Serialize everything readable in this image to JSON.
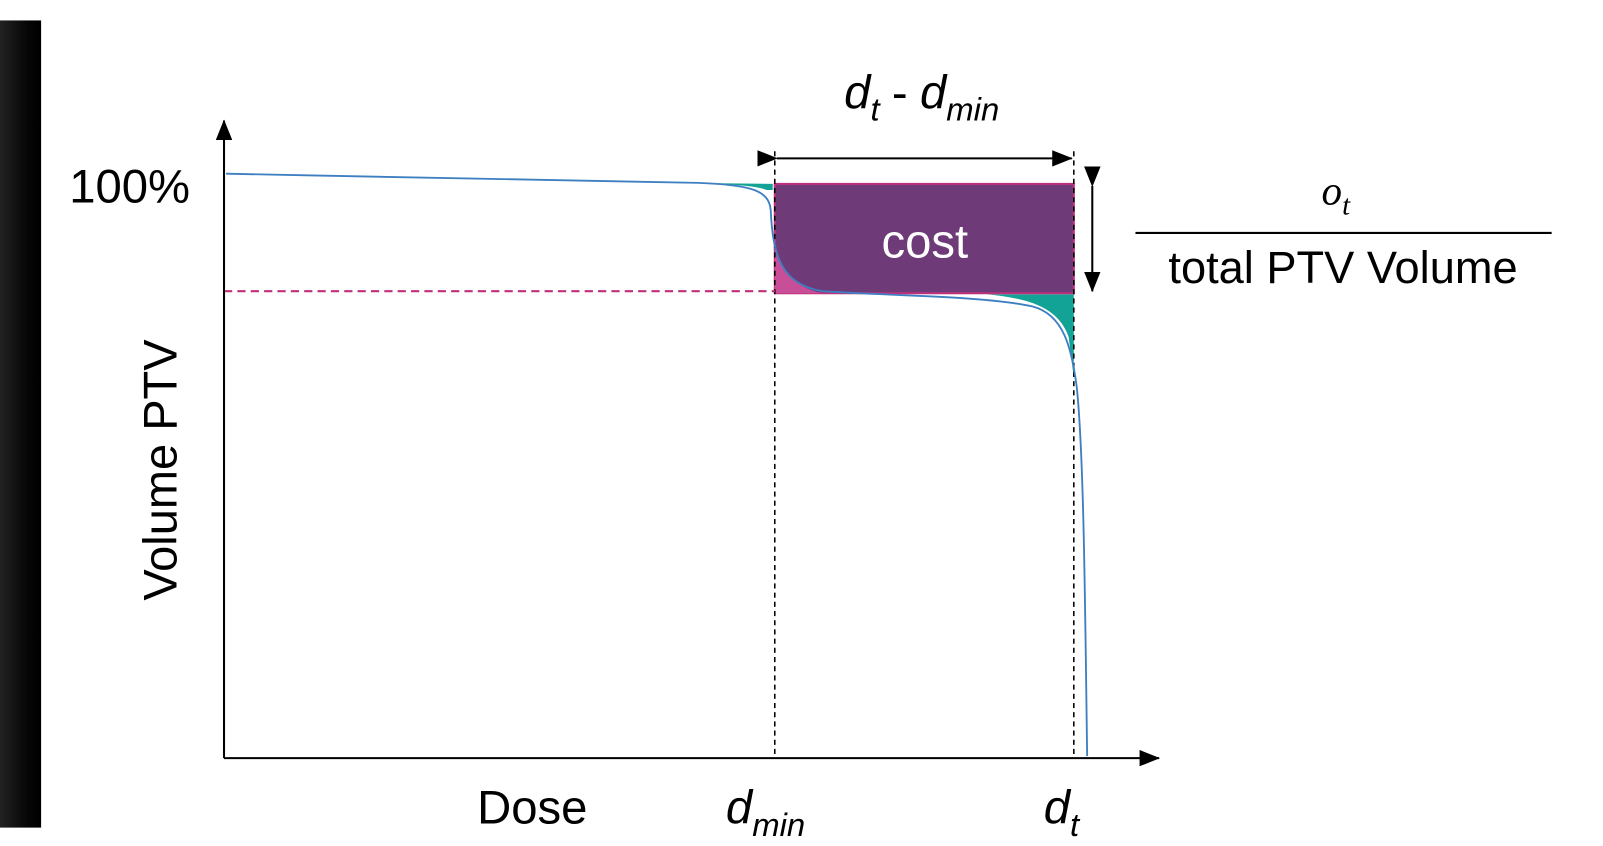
{
  "axes": {
    "y_tick": "100%",
    "y_label": "Volume PTV",
    "x_label": "Dose"
  },
  "markers": {
    "d_min": {
      "base": "d",
      "sub": "min"
    },
    "d_t": {
      "base": "d",
      "sub": "t"
    }
  },
  "annotations": {
    "width": {
      "left_base": "d",
      "left_sub": "t",
      "separator": "-",
      "right_base": "d",
      "right_sub": "min"
    },
    "cost": "cost",
    "height": {
      "numerator_base": "o",
      "numerator_sub": "t",
      "denominator": "total PTV Volume"
    }
  }
}
